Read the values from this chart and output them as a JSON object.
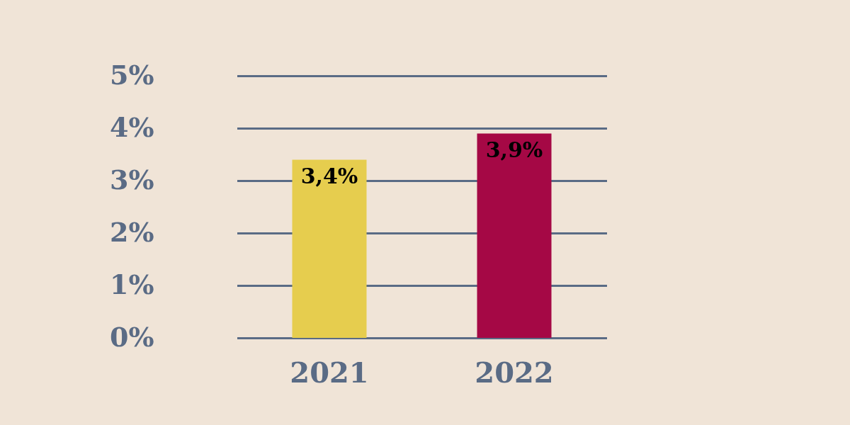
{
  "chart_data": {
    "type": "bar",
    "categories": [
      "2021",
      "2022"
    ],
    "values": [
      3.4,
      3.9
    ],
    "colors": [
      "#e6cd4e",
      "#a50845"
    ],
    "value_labels": [
      "3,4%",
      "3,9%"
    ],
    "ylim": [
      0,
      5
    ],
    "yticks": [
      {
        "value": 0,
        "label": "0%"
      },
      {
        "value": 1,
        "label": "1%"
      },
      {
        "value": 2,
        "label": "2%"
      },
      {
        "value": 3,
        "label": "3%"
      },
      {
        "value": 4,
        "label": "4%"
      },
      {
        "value": 5,
        "label": "5%"
      }
    ],
    "grid": "y"
  }
}
